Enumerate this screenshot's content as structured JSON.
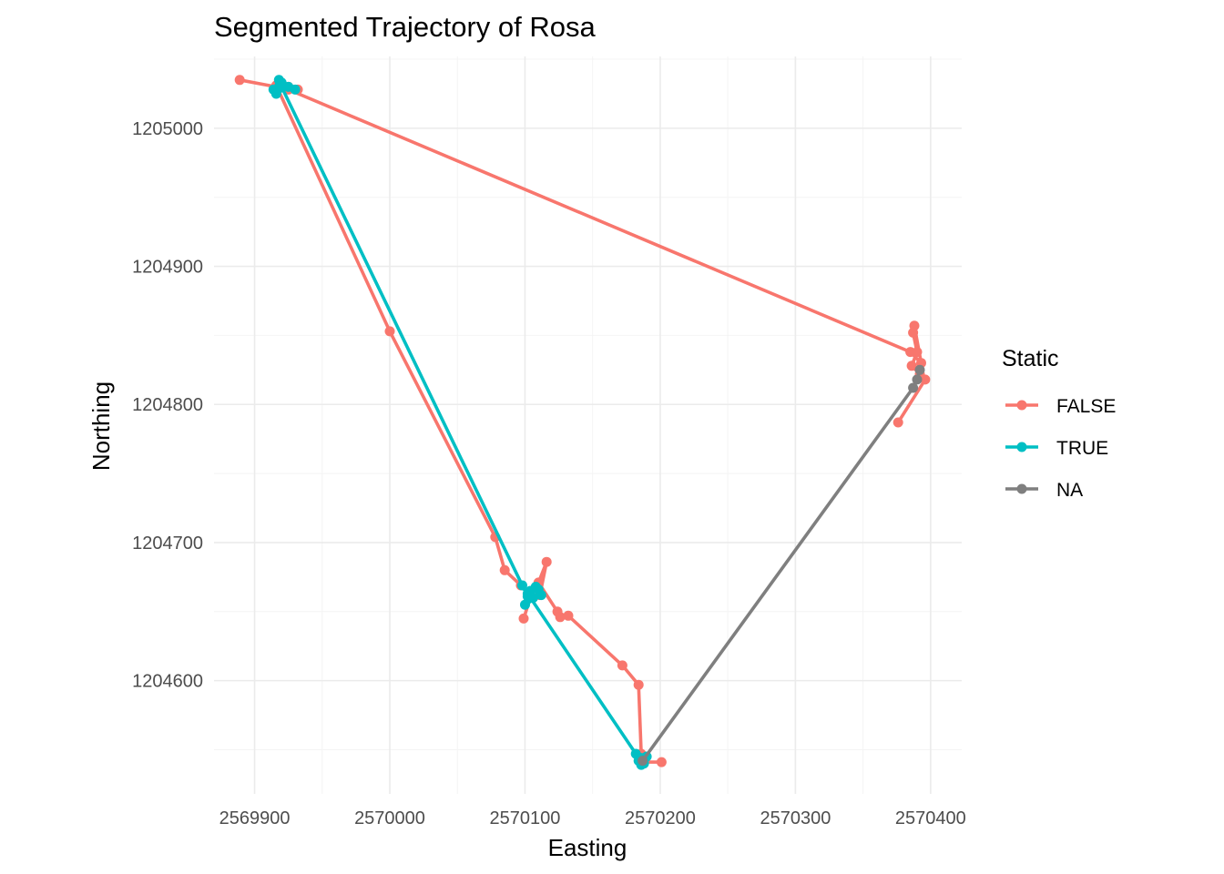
{
  "chart_data": {
    "type": "line",
    "title": "Segmented Trajectory of Rosa",
    "xlabel": "Easting",
    "ylabel": "Northing",
    "xlim": [
      2569870,
      2570423
    ],
    "ylim": [
      1204518,
      1205052
    ],
    "x_ticks": [
      2569900,
      2570000,
      2570100,
      2570200,
      2570300,
      2570400
    ],
    "x_tick_labels": [
      "2569900",
      "2570000",
      "2570100",
      "2570200",
      "2570300",
      "2570400"
    ],
    "y_ticks": [
      1204600,
      1204700,
      1204800,
      1204900,
      1205000
    ],
    "y_tick_labels": [
      "1204600",
      "1204700",
      "1204800",
      "1204900",
      "1205000"
    ],
    "grid": true,
    "legend": {
      "title": "Static",
      "placement": "right",
      "entries": [
        {
          "label": "FALSE",
          "color": "#F8766D"
        },
        {
          "label": "TRUE",
          "color": "#00BFC4"
        },
        {
          "label": "NA",
          "color": "#7F7F7F"
        }
      ]
    },
    "series": [
      {
        "name": "FALSE",
        "color": "#F8766D",
        "segments": [
          [
            [
              2569889,
              1205035
            ],
            [
              2569916,
              1205030
            ],
            [
              2569925,
              1205030
            ],
            [
              2569932,
              1205028
            ]
          ],
          [
            [
              2569916,
              1205031
            ],
            [
              2570000,
              1204853
            ],
            [
              2570078,
              1204704
            ],
            [
              2570085,
              1204680
            ],
            [
              2570097,
              1204669
            ]
          ],
          [
            [
              2570099,
              1204645
            ],
            [
              2570104,
              1204660
            ],
            [
              2570111,
              1204662
            ],
            [
              2570116,
              1204686
            ],
            [
              2570110,
              1204671
            ],
            [
              2570124,
              1204650
            ],
            [
              2570126,
              1204646
            ],
            [
              2570132,
              1204647
            ],
            [
              2570172,
              1204611
            ],
            [
              2570184,
              1204597
            ],
            [
              2570186,
              1204547
            ],
            [
              2570188,
              1204541
            ],
            [
              2570201,
              1204541
            ]
          ],
          [
            [
              2569925,
              1205028
            ],
            [
              2570385,
              1204838
            ],
            [
              2570393,
              1204830
            ],
            [
              2570388,
              1204857
            ],
            [
              2570387,
              1204852
            ],
            [
              2570390,
              1204838
            ],
            [
              2570386,
              1204828
            ],
            [
              2570392,
              1204822
            ],
            [
              2570396,
              1204818
            ],
            [
              2570376,
              1204787
            ]
          ]
        ]
      },
      {
        "name": "TRUE",
        "color": "#00BFC4",
        "segments": [
          [
            [
              2569914,
              1205028
            ],
            [
              2569918,
              1205035
            ],
            [
              2569920,
              1205030
            ],
            [
              2569916,
              1205025
            ],
            [
              2569925,
              1205030
            ],
            [
              2569930,
              1205028
            ],
            [
              2569920,
              1205033
            ]
          ],
          [
            [
              2569920,
              1205030
            ],
            [
              2570098,
              1204669
            ],
            [
              2570102,
              1204661
            ],
            [
              2570108,
              1204668
            ],
            [
              2570112,
              1204662
            ],
            [
              2570100,
              1204655
            ],
            [
              2570106,
              1204660
            ],
            [
              2570104,
              1204665
            ],
            [
              2570110,
              1204666
            ]
          ],
          [
            [
              2570102,
              1204663
            ],
            [
              2570182,
              1204547
            ],
            [
              2570186,
              1204539
            ],
            [
              2570190,
              1204545
            ],
            [
              2570184,
              1204542
            ],
            [
              2570188,
              1204540
            ],
            [
              2570186,
              1204544
            ]
          ]
        ]
      },
      {
        "name": "NA",
        "color": "#7F7F7F",
        "segments": [
          [
            [
              2570187,
              1204542
            ],
            [
              2570387,
              1204812
            ],
            [
              2570390,
              1204818
            ],
            [
              2570392,
              1204825
            ]
          ]
        ]
      }
    ]
  }
}
